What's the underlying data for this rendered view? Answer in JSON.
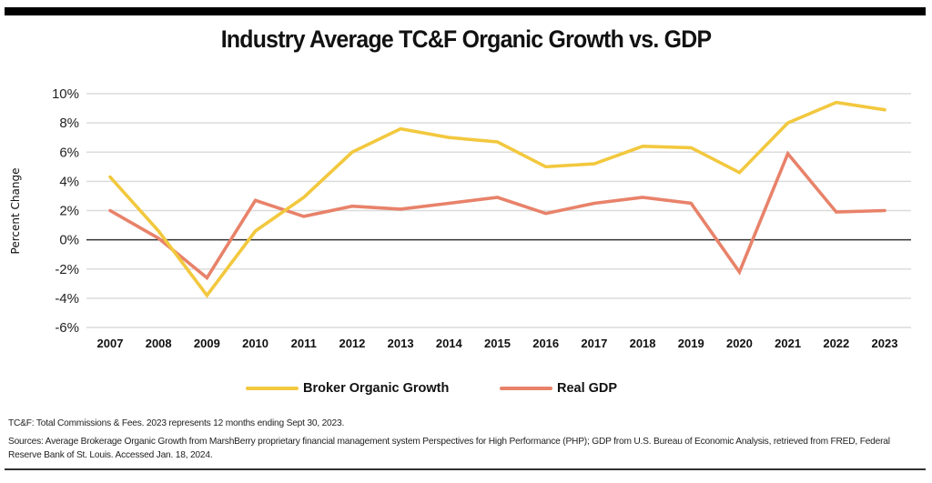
{
  "chart_data": {
    "type": "line",
    "title": "Industry Average TC&F Organic Growth vs. GDP",
    "xlabel": "",
    "ylabel": "Percent Change",
    "x": [
      "2007",
      "2008",
      "2009",
      "2010",
      "2011",
      "2012",
      "2013",
      "2014",
      "2015",
      "2016",
      "2017",
      "2018",
      "2019",
      "2020",
      "2021",
      "2022",
      "2023"
    ],
    "ylim": [
      -6,
      10
    ],
    "yticks": [
      10,
      8,
      6,
      4,
      2,
      0,
      -2,
      -4,
      -6
    ],
    "ytick_labels": [
      "10%",
      "8%",
      "6%",
      "4%",
      "2%",
      "0%",
      "-2%",
      "-4%",
      "-6%"
    ],
    "grid": true,
    "legend_position": "bottom-center",
    "series": [
      {
        "name": "Broker Organic Growth",
        "color": "#F2C83E",
        "values": [
          4.3,
          0.6,
          -3.8,
          0.6,
          2.9,
          6.0,
          7.6,
          7.0,
          6.7,
          5.0,
          5.2,
          6.4,
          6.3,
          4.6,
          8.0,
          9.4,
          8.9
        ]
      },
      {
        "name": "Real GDP",
        "color": "#E8826A",
        "values": [
          2.0,
          0.1,
          -2.6,
          2.7,
          1.6,
          2.3,
          2.1,
          2.5,
          2.9,
          1.8,
          2.5,
          2.9,
          2.5,
          -2.2,
          5.9,
          1.9,
          2.0
        ]
      }
    ]
  },
  "notes": {
    "definition": "TC&F: Total Commissions & Fees. 2023 represents 12 months ending Sept 30, 2023.",
    "sources": "Sources: Average Brokerage Organic Growth from MarshBerry proprietary financial management system Perspectives for High Performance (PHP); GDP from U.S. Bureau of Economic Analysis, retrieved from FRED, Federal Reserve Bank of St. Louis. Accessed Jan. 18, 2024."
  }
}
